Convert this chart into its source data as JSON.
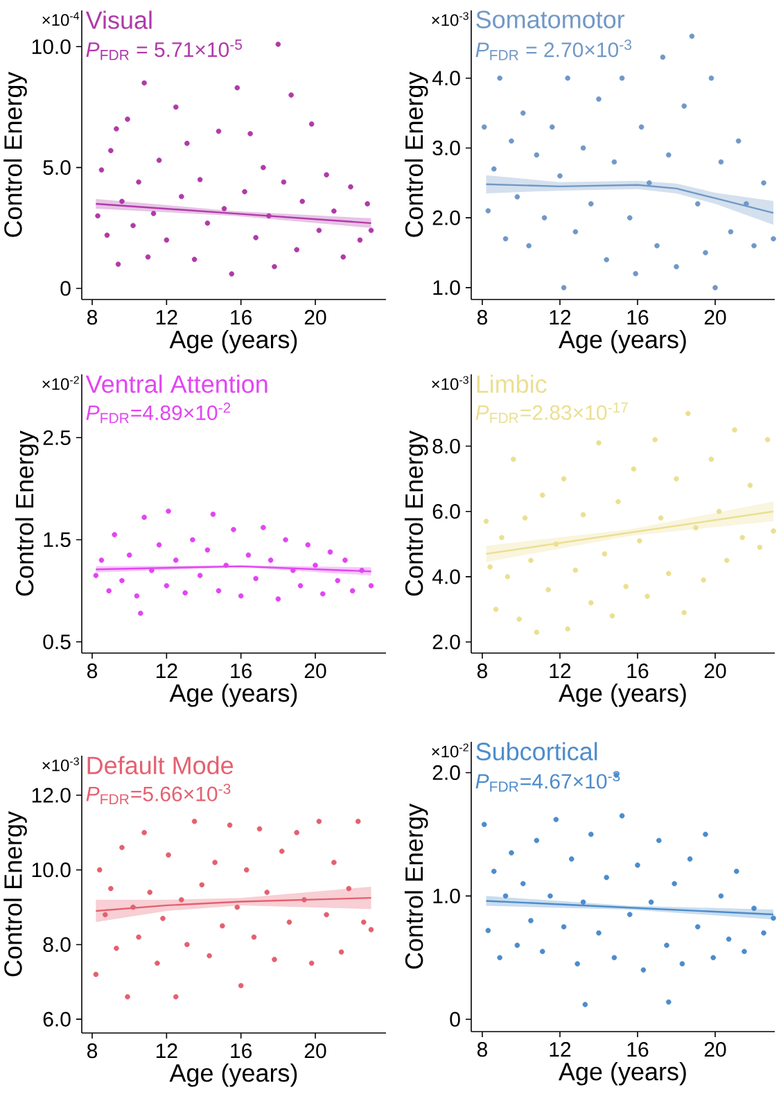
{
  "chart_data": [
    {
      "type": "scatter",
      "title": "Visual",
      "subtitle": "*P*$_{FDR}$ = 5.71×10$^{-5}$",
      "xlabel": "Age (years)",
      "ylabel": "Control Energy",
      "annotations": [
        "×10$^{-4}$"
      ],
      "xlim": [
        7.44,
        23.8
      ],
      "ylim": [
        -0.46,
        11.5
      ],
      "xticks": [
        8,
        12,
        16,
        20
      ],
      "yticks": [
        {
          "value": 0,
          "label": "0"
        },
        {
          "value": 5,
          "label": "5.0"
        },
        {
          "value": 10,
          "label": "10.0"
        }
      ],
      "series": [
        {
          "color": "#b03aa8",
          "marker": "circle",
          "x": [
            8.3,
            8.5,
            8.8,
            9.0,
            9.3,
            9.4,
            9.6,
            9.9,
            10.2,
            10.5,
            10.8,
            11.0,
            11.3,
            11.6,
            12.0,
            12.5,
            12.8,
            13.1,
            13.5,
            13.8,
            14.2,
            14.8,
            15.1,
            15.5,
            15.8,
            16.2,
            16.5,
            16.8,
            17.2,
            17.5,
            17.8,
            18.0,
            18.3,
            18.7,
            19.0,
            19.3,
            19.8,
            20.2,
            20.6,
            21.0,
            21.5,
            21.9,
            22.4,
            22.8,
            23.0
          ],
          "values": [
            3.0,
            4.9,
            2.2,
            5.7,
            6.6,
            1.0,
            3.6,
            7.0,
            2.6,
            4.4,
            8.5,
            1.3,
            3.1,
            5.3,
            2.0,
            7.5,
            3.8,
            6.0,
            1.2,
            4.5,
            2.7,
            6.5,
            3.3,
            0.6,
            8.3,
            4.0,
            6.4,
            2.1,
            5.0,
            3.0,
            0.9,
            10.1,
            4.4,
            8.0,
            1.6,
            3.6,
            6.8,
            2.4,
            4.7,
            3.2,
            1.3,
            4.2,
            2.0,
            3.5,
            2.4
          ]
        },
        {
          "type": "line",
          "color": "#b03aa8",
          "marker": "none",
          "x": [
            8.2,
            15.6,
            23.0
          ],
          "values": [
            3.5,
            3.1,
            2.7
          ],
          "lower": [
            3.3,
            3.0,
            2.5
          ],
          "upper": [
            3.7,
            3.2,
            2.9
          ]
        }
      ]
    },
    {
      "type": "scatter",
      "title": "Somatomotor",
      "subtitle": "*P*$_{FDR}$ = 2.70×10$^{-3}$",
      "xlabel": "Age (years)",
      "ylabel": "Control Energy",
      "annotations": [
        "×10$^{-3}$"
      ],
      "xlim": [
        7.43,
        23.07
      ],
      "ylim": [
        0.83,
        4.97
      ],
      "xticks": [
        8,
        12,
        16,
        20
      ],
      "yticks": [
        {
          "value": 1,
          "label": "1.0"
        },
        {
          "value": 2,
          "label": "2.0"
        },
        {
          "value": 3,
          "label": "3.0"
        },
        {
          "value": 4,
          "label": "4.0"
        }
      ],
      "series": [
        {
          "color": "#7098c6",
          "marker": "circle",
          "x": [
            8.1,
            8.3,
            8.6,
            8.9,
            9.2,
            9.5,
            9.8,
            10.1,
            10.4,
            10.8,
            11.2,
            11.6,
            12.0,
            12.2,
            12.4,
            12.8,
            13.2,
            13.6,
            14.0,
            14.4,
            14.8,
            15.2,
            15.6,
            15.9,
            16.2,
            16.6,
            17.0,
            17.3,
            17.6,
            18.0,
            18.4,
            18.8,
            19.1,
            19.5,
            19.8,
            20.0,
            20.3,
            20.8,
            21.2,
            21.6,
            22.0,
            22.5,
            23.0
          ],
          "values": [
            3.3,
            2.1,
            2.7,
            4.0,
            1.7,
            3.1,
            2.3,
            3.5,
            1.6,
            2.9,
            2.0,
            3.3,
            2.6,
            1.0,
            4.0,
            1.8,
            3.0,
            2.2,
            3.7,
            1.4,
            2.8,
            4.0,
            2.0,
            1.2,
            3.3,
            2.5,
            1.6,
            4.3,
            2.9,
            1.3,
            3.6,
            4.6,
            2.2,
            1.5,
            4.0,
            1.0,
            2.8,
            1.8,
            3.1,
            2.2,
            1.6,
            2.5,
            1.7
          ]
        },
        {
          "type": "line",
          "color": "#7098c6",
          "marker": "none",
          "x": [
            8.2,
            12.0,
            16.0,
            18.0,
            20.0,
            23.0
          ],
          "values": [
            2.48,
            2.45,
            2.47,
            2.42,
            2.28,
            2.07
          ],
          "lower": [
            2.35,
            2.39,
            2.41,
            2.35,
            2.2,
            1.9
          ],
          "upper": [
            2.61,
            2.51,
            2.53,
            2.49,
            2.36,
            2.24
          ]
        }
      ]
    },
    {
      "type": "scatter",
      "title": "Ventral Attention",
      "subtitle": "*P*$_{FDR}$=4.89×10$^{-2}$",
      "xlabel": "Age (years)",
      "ylabel": "Control Energy",
      "annotations": [
        "×10$^{-2}$"
      ],
      "xlim": [
        7.44,
        23.8
      ],
      "ylim": [
        0.39,
        3.12
      ],
      "xticks": [
        8,
        12,
        16,
        20
      ],
      "yticks": [
        {
          "value": 0.5,
          "label": "0.5"
        },
        {
          "value": 1.5,
          "label": "1.5"
        },
        {
          "value": 2.5,
          "label": "2.5"
        }
      ],
      "series": [
        {
          "color": "#e245f2",
          "marker": "circle",
          "x": [
            8.2,
            8.5,
            8.9,
            9.2,
            9.6,
            10.0,
            10.4,
            10.6,
            10.8,
            11.2,
            11.6,
            12.0,
            12.1,
            12.5,
            13.0,
            13.4,
            13.8,
            14.2,
            14.5,
            14.8,
            15.2,
            15.6,
            16.0,
            16.4,
            16.8,
            17.2,
            17.6,
            18.0,
            18.4,
            18.8,
            19.2,
            19.6,
            20.0,
            20.4,
            20.8,
            21.2,
            21.6,
            22.0,
            22.5,
            23.0
          ],
          "values": [
            1.15,
            1.3,
            1.0,
            1.55,
            1.1,
            1.35,
            0.95,
            0.78,
            1.72,
            1.2,
            1.45,
            1.05,
            1.78,
            1.3,
            0.98,
            1.5,
            1.15,
            1.4,
            1.75,
            1.0,
            1.25,
            1.6,
            0.95,
            1.35,
            1.12,
            1.62,
            1.3,
            0.92,
            1.5,
            1.2,
            1.05,
            1.45,
            1.25,
            0.97,
            1.38,
            1.1,
            1.3,
            1.0,
            1.2,
            1.05
          ]
        },
        {
          "type": "line",
          "color": "#e245f2",
          "marker": "none",
          "x": [
            8.2,
            16.0,
            23.0
          ],
          "values": [
            1.21,
            1.24,
            1.19
          ],
          "lower": [
            1.18,
            1.23,
            1.15
          ],
          "upper": [
            1.24,
            1.25,
            1.23
          ]
        }
      ]
    },
    {
      "type": "scatter",
      "title": "Limbic",
      "subtitle": "*P*$_{FDR}$=2.83×10$^{-17}$",
      "xlabel": "Age (years)",
      "ylabel": "Control Energy",
      "annotations": [
        "×10$^{-3}$"
      ],
      "xlim": [
        7.43,
        23.07
      ],
      "ylim": [
        1.66,
        10.2
      ],
      "xticks": [
        8,
        12,
        16,
        20
      ],
      "yticks": [
        {
          "value": 2,
          "label": "2.0"
        },
        {
          "value": 4,
          "label": "4.0"
        },
        {
          "value": 6,
          "label": "6.0"
        },
        {
          "value": 8,
          "label": "8.0"
        }
      ],
      "series": [
        {
          "color": "#ebdf92",
          "marker": "circle",
          "x": [
            8.2,
            8.4,
            8.7,
            9.0,
            9.3,
            9.6,
            9.9,
            10.2,
            10.5,
            10.8,
            11.1,
            11.4,
            11.8,
            12.2,
            12.4,
            12.8,
            13.2,
            13.6,
            14.0,
            14.3,
            14.7,
            15.0,
            15.4,
            15.8,
            16.1,
            16.5,
            16.9,
            17.2,
            17.6,
            18.0,
            18.4,
            18.6,
            19.0,
            19.4,
            19.8,
            20.2,
            20.6,
            21.0,
            21.4,
            21.8,
            22.3,
            22.7,
            23.0
          ],
          "values": [
            5.7,
            4.3,
            3.0,
            5.2,
            4.0,
            7.6,
            2.7,
            5.8,
            4.5,
            2.3,
            6.5,
            3.6,
            5.0,
            7.0,
            2.4,
            4.2,
            5.9,
            3.2,
            8.1,
            4.7,
            2.8,
            6.3,
            3.7,
            7.3,
            5.1,
            3.4,
            8.2,
            5.8,
            4.1,
            7.0,
            2.9,
            9.0,
            5.5,
            3.9,
            7.6,
            6.0,
            4.5,
            8.5,
            5.2,
            6.8,
            4.9,
            8.2,
            5.4
          ]
        },
        {
          "type": "line",
          "color": "#ebdf92",
          "marker": "none",
          "x": [
            8.2,
            15.6,
            23.0
          ],
          "values": [
            4.7,
            5.35,
            6.0
          ],
          "lower": [
            4.45,
            5.25,
            5.7
          ],
          "upper": [
            4.95,
            5.45,
            6.3
          ]
        }
      ]
    },
    {
      "type": "scatter",
      "title": "Default Mode",
      "subtitle": "*P*$_{FDR}$=5.66×10$^{-3}$",
      "xlabel": "Age (years)",
      "ylabel": "Control Energy",
      "annotations": [
        "×10$^{-3}$"
      ],
      "xlim": [
        7.44,
        23.8
      ],
      "ylim": [
        5.63,
        13.06
      ],
      "xticks": [
        8,
        12,
        16,
        20
      ],
      "yticks": [
        {
          "value": 6,
          "label": "6.0"
        },
        {
          "value": 8,
          "label": "8.0"
        },
        {
          "value": 10,
          "label": "10.0"
        },
        {
          "value": 12,
          "label": "12.0"
        }
      ],
      "series": [
        {
          "color": "#e4606f",
          "marker": "circle",
          "x": [
            8.2,
            8.4,
            8.7,
            9.0,
            9.3,
            9.6,
            9.9,
            10.2,
            10.5,
            10.8,
            11.1,
            11.5,
            11.8,
            12.1,
            12.5,
            12.8,
            13.1,
            13.5,
            13.9,
            14.3,
            14.6,
            15.0,
            15.4,
            15.8,
            16.0,
            16.3,
            16.7,
            17.0,
            17.4,
            17.8,
            18.2,
            18.6,
            19.0,
            19.4,
            19.8,
            20.2,
            20.6,
            21.0,
            21.4,
            21.8,
            22.3,
            22.6,
            23.0
          ],
          "values": [
            7.2,
            10.0,
            8.8,
            9.5,
            7.9,
            10.6,
            6.6,
            9.0,
            8.2,
            11.0,
            9.4,
            7.5,
            8.7,
            10.4,
            6.6,
            9.2,
            8.0,
            11.3,
            9.6,
            7.7,
            10.2,
            8.5,
            11.2,
            9.0,
            6.9,
            10.0,
            8.2,
            11.1,
            9.4,
            7.6,
            10.5,
            8.6,
            11.0,
            9.2,
            7.5,
            11.3,
            8.8,
            10.2,
            7.8,
            9.5,
            11.3,
            8.6,
            8.4
          ]
        },
        {
          "type": "line",
          "color": "#e4606f",
          "marker": "none",
          "x": [
            8.2,
            12.0,
            16.0,
            23.0
          ],
          "values": [
            8.9,
            9.05,
            9.15,
            9.25
          ],
          "lower": [
            8.6,
            8.9,
            9.05,
            8.95
          ],
          "upper": [
            9.2,
            9.2,
            9.25,
            9.55
          ]
        }
      ]
    },
    {
      "type": "scatter",
      "title": "Subcortical",
      "subtitle": "*P*$_{FDR}$=4.67×10$^{-3}$",
      "xlabel": "Age (years)",
      "ylabel": "Control Energy",
      "annotations": [
        "×10$^{-2}$"
      ],
      "xlim": [
        7.43,
        23.07
      ],
      "ylim": [
        -0.1,
        2.25
      ],
      "xticks": [
        8,
        12,
        16,
        20
      ],
      "yticks": [
        {
          "value": 0,
          "label": "0"
        },
        {
          "value": 1,
          "label": "1.0"
        },
        {
          "value": 2,
          "label": "2.0"
        }
      ],
      "series": [
        {
          "color": "#4c8ccb",
          "marker": "circle",
          "x": [
            8.1,
            8.3,
            8.6,
            8.9,
            9.2,
            9.5,
            9.8,
            10.1,
            10.5,
            10.8,
            11.1,
            11.5,
            11.8,
            12.2,
            12.6,
            12.9,
            13.2,
            13.3,
            13.6,
            14.0,
            14.4,
            14.8,
            14.9,
            15.2,
            15.6,
            16.0,
            16.3,
            16.7,
            17.1,
            17.5,
            17.6,
            17.9,
            18.3,
            18.7,
            19.1,
            19.5,
            19.9,
            20.3,
            20.7,
            21.1,
            21.5,
            22.0,
            22.5,
            23.0
          ],
          "values": [
            1.58,
            0.72,
            1.2,
            0.5,
            1.0,
            1.35,
            0.6,
            1.1,
            0.8,
            1.45,
            0.55,
            1.0,
            1.62,
            0.75,
            1.3,
            0.45,
            0.95,
            0.12,
            1.5,
            0.7,
            1.15,
            0.5,
            1.98,
            1.65,
            0.85,
            1.25,
            0.4,
            0.95,
            1.45,
            0.6,
            0.14,
            1.1,
            0.45,
            1.3,
            0.75,
            1.5,
            0.5,
            1.0,
            0.65,
            1.2,
            0.55,
            0.9,
            0.7,
            0.82
          ]
        },
        {
          "type": "line",
          "color": "#4c8ccb",
          "marker": "none",
          "x": [
            8.2,
            15.6,
            23.0
          ],
          "values": [
            0.96,
            0.905,
            0.85
          ],
          "lower": [
            0.92,
            0.89,
            0.81
          ],
          "upper": [
            1.0,
            0.92,
            0.89
          ]
        }
      ]
    }
  ]
}
